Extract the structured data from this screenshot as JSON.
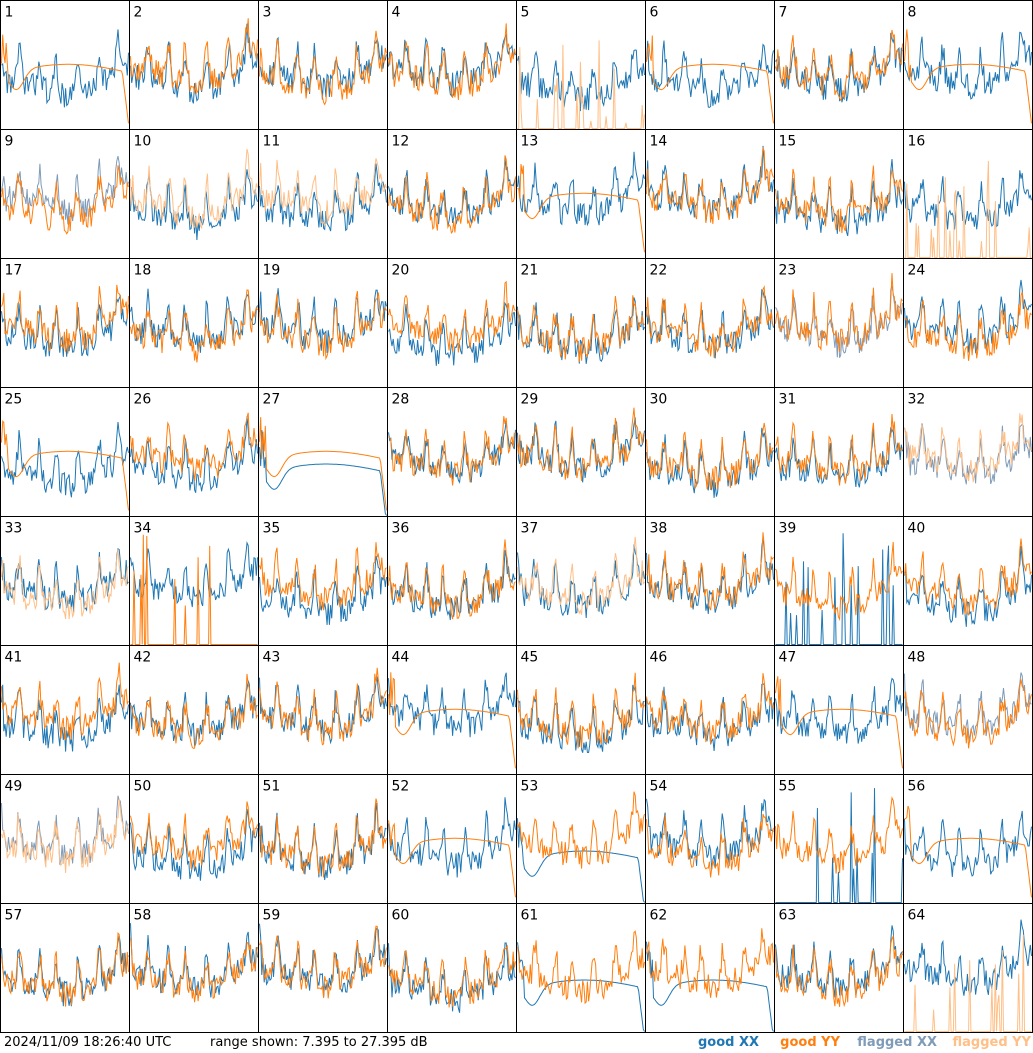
{
  "chart_data": {
    "type": "line",
    "layout": "small-multiples",
    "panel_count": 64,
    "columns": 8,
    "panel_labels": [
      "1",
      "2",
      "3",
      "4",
      "5",
      "6",
      "7",
      "8",
      "9",
      "10",
      "11",
      "12",
      "13",
      "14",
      "15",
      "16",
      "17",
      "18",
      "19",
      "20",
      "21",
      "22",
      "23",
      "24",
      "25",
      "26",
      "27",
      "28",
      "29",
      "30",
      "31",
      "32",
      "33",
      "34",
      "35",
      "36",
      "37",
      "38",
      "39",
      "40",
      "41",
      "42",
      "43",
      "44",
      "45",
      "46",
      "47",
      "48",
      "49",
      "50",
      "51",
      "52",
      "53",
      "54",
      "55",
      "56",
      "57",
      "58",
      "59",
      "60",
      "61",
      "62",
      "63",
      "64"
    ],
    "ylim": [
      7.395,
      27.395
    ],
    "y_unit": "dB",
    "series": [
      {
        "name": "good XX",
        "color": "#1f77b4"
      },
      {
        "name": "good YY",
        "color": "#ff7f0e"
      },
      {
        "name": "flagged XX",
        "color": "#7f9bb8"
      },
      {
        "name": "flagged YY",
        "color": "#ffbf86"
      }
    ],
    "flagged_xx_panels": [
      9,
      23,
      32,
      48,
      49
    ],
    "flagged_yy_panels": [
      5,
      10,
      11,
      16,
      32,
      33,
      37,
      49,
      64
    ],
    "spiky_xx_panels": [
      39,
      55
    ],
    "spiky_yy_panels": [
      34
    ],
    "smooth_yy_panels": [
      1,
      6,
      8,
      13,
      25,
      27,
      44,
      47,
      52,
      56
    ],
    "smooth_xx_panels": [
      27,
      53,
      61,
      62
    ],
    "grid": false,
    "legend_position": "bottom-right"
  },
  "footer": {
    "timestamp": "2024/11/09 18:26:40 UTC",
    "range_text": "range shown: 7.395 to 27.395 dB",
    "legend_good_xx": "good XX",
    "legend_good_yy": "good YY",
    "legend_flagged_xx": "flagged XX",
    "legend_flagged_yy": "flagged YY"
  }
}
